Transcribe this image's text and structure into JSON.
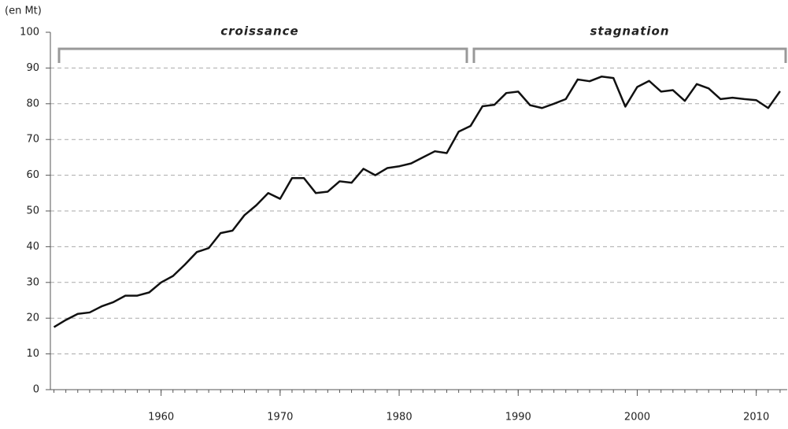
{
  "chart_data": {
    "type": "line",
    "y_label": "(en Mt)",
    "annotations": [
      "croissance",
      "stagnation"
    ],
    "x": [
      1951,
      1952,
      1953,
      1954,
      1955,
      1956,
      1957,
      1958,
      1959,
      1960,
      1961,
      1962,
      1963,
      1964,
      1965,
      1966,
      1967,
      1968,
      1969,
      1970,
      1971,
      1972,
      1973,
      1974,
      1975,
      1976,
      1977,
      1978,
      1979,
      1980,
      1981,
      1982,
      1983,
      1984,
      1985,
      1986,
      1987,
      1988,
      1989,
      1990,
      1991,
      1992,
      1993,
      1994,
      1995,
      1996,
      1997,
      1998,
      1999,
      2000,
      2001,
      2002,
      2003,
      2004,
      2005,
      2006,
      2007,
      2008,
      2009,
      2010,
      2011,
      2012
    ],
    "series": [
      {
        "color": "#111111",
        "values": [
          17.5,
          19.5,
          21.2,
          21.6,
          23.3,
          24.5,
          26.3,
          26.3,
          27.2,
          30,
          31.8,
          35,
          38.5,
          39.6,
          43.8,
          44.5,
          48.8,
          51.6,
          55,
          53.4,
          59.2,
          59.2,
          55,
          55.4,
          58.3,
          57.9,
          61.8,
          60,
          62,
          62.5,
          63.3,
          65,
          66.7,
          66.2,
          72.2,
          73.8,
          79.3,
          79.7,
          83,
          83.4,
          79.6,
          78.8,
          80,
          81.3,
          86.8,
          86.3,
          87.6,
          87.2,
          79.2,
          84.7,
          86.4,
          83.4,
          83.8,
          80.8,
          85.5,
          84.3,
          81.3,
          81.7,
          81.3,
          81,
          78.8,
          83.5
        ]
      }
    ],
    "xlim": [
      1950.7,
      2012.6
    ],
    "ylim": [
      0,
      100
    ],
    "xticks": [
      1960,
      1970,
      1980,
      1990,
      2000,
      2010
    ],
    "yticks": [
      0,
      10,
      20,
      30,
      40,
      50,
      60,
      70,
      80,
      90,
      100
    ],
    "grid": true
  }
}
